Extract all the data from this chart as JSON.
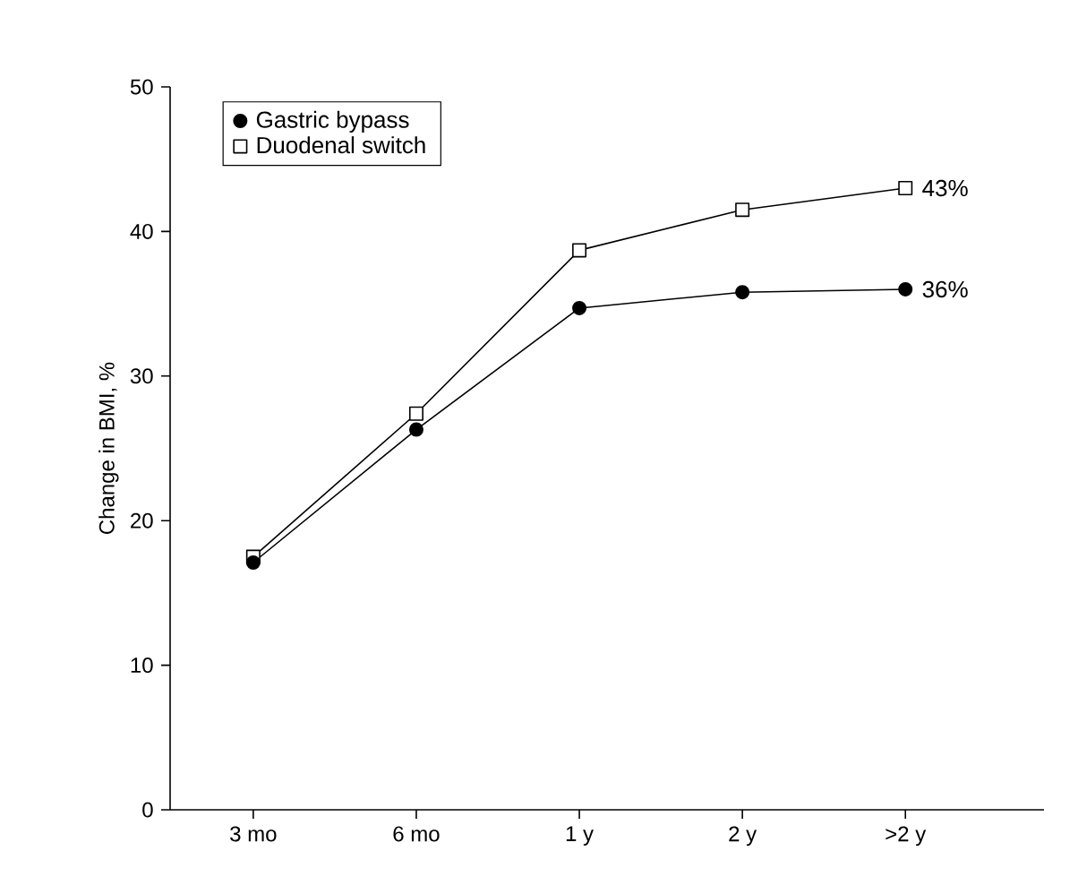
{
  "chart_data": {
    "type": "line",
    "ylabel": "Change in BMI, %",
    "categories": [
      "3 mo",
      "6 mo",
      "1 y",
      "2 y",
      ">2 y"
    ],
    "series": [
      {
        "name": "Gastric bypass",
        "color": "#000000",
        "marker": "circle",
        "values": [
          17.1,
          26.3,
          34.7,
          35.8,
          36
        ],
        "value_labels": [
          null,
          null,
          null,
          null,
          "36%"
        ]
      },
      {
        "name": "Duodenal switch",
        "color": "#000000",
        "marker": "square",
        "values": [
          17.5,
          27.4,
          38.7,
          41.5,
          43
        ],
        "value_labels": [
          null,
          null,
          null,
          null,
          "43%"
        ]
      }
    ],
    "ylim": [
      0,
      50
    ],
    "yticks": [
      0,
      10,
      20,
      30,
      40,
      50
    ],
    "grid": false,
    "legend": "top left",
    "line_style": "solid"
  }
}
